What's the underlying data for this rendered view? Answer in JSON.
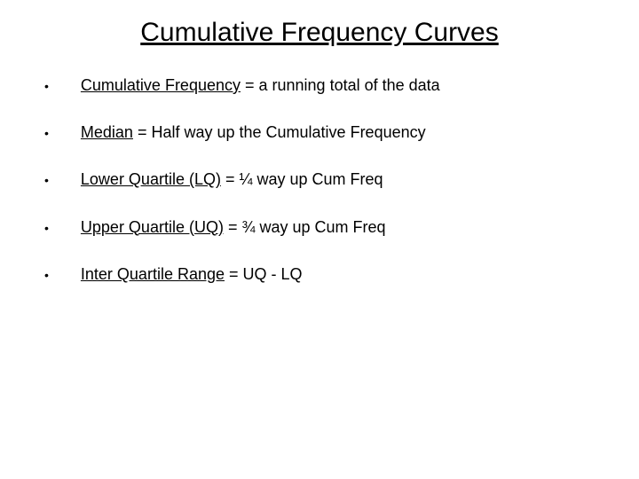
{
  "title": "Cumulative Frequency Curves",
  "title_fontsize": 30,
  "body_fontsize": 18,
  "text_color": "#000000",
  "background_color": "#ffffff",
  "font_family": "Comic Sans MS",
  "bullets": [
    {
      "term": "Cumulative Frequency",
      "rest": " = a running total of the data"
    },
    {
      "term": "Median",
      "rest": " = Half way up the Cumulative Frequency"
    },
    {
      "term": "Lower Quartile (LQ)",
      "rest": " = ¼ way up Cum Freq"
    },
    {
      "term": "Upper Quartile (UQ)",
      "rest": " = ¾ way up Cum Freq"
    },
    {
      "term": "Inter Quartile Range",
      "rest": " = UQ - LQ"
    }
  ]
}
